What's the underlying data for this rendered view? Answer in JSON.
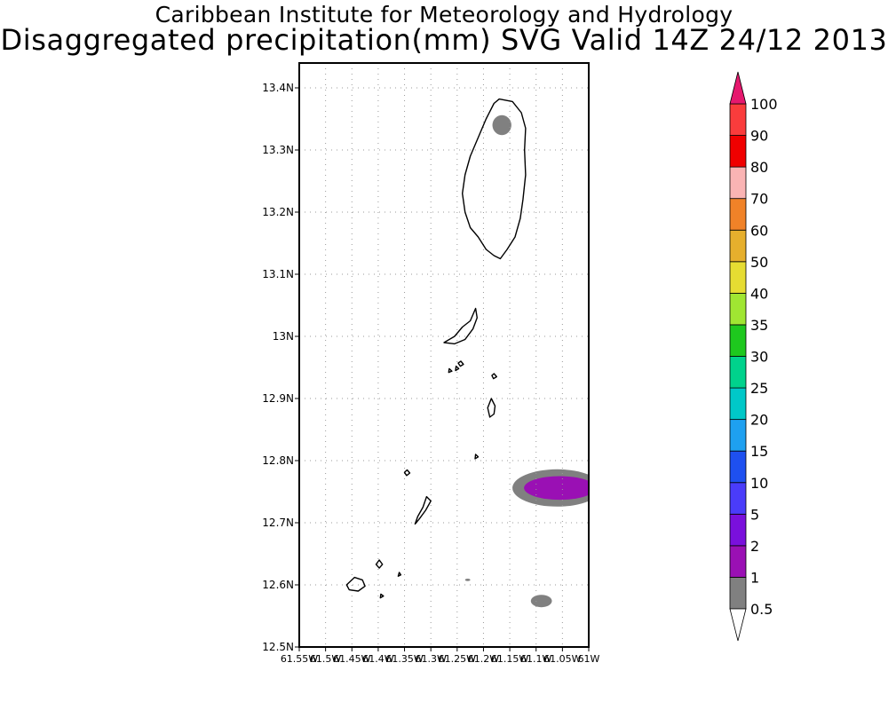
{
  "title_line1": "Caribbean Institute for Meteorology and Hydrology",
  "title_line2": "Disaggregated precipitation(mm) SVG Valid 14Z 24/12 2013",
  "y_ticks": [
    "13.4N",
    "13.3N",
    "13.2N",
    "13.1N",
    "13N",
    "12.9N",
    "12.8N",
    "12.7N",
    "12.6N",
    "12.5N"
  ],
  "x_ticks": [
    "61.55W",
    "61.5W",
    "61.45W",
    "61.4W",
    "61.35W",
    "61.3W",
    "61.25W",
    "61.2W",
    "61.15W",
    "61.1W",
    "61.05W",
    "61W"
  ],
  "extent": {
    "lon_min": -61.55,
    "lon_max": -61.0,
    "lat_min": 12.5,
    "lat_max": 13.44
  },
  "colorbar": {
    "labels": [
      "0.5",
      "1",
      "2",
      "5",
      "10",
      "15",
      "20",
      "25",
      "30",
      "35",
      "40",
      "50",
      "60",
      "70",
      "80",
      "90",
      "100"
    ],
    "colors": [
      "#808080",
      "#9a10b4",
      "#7a10dc",
      "#4a3cfa",
      "#1e50f0",
      "#1ea0f0",
      "#00c8c8",
      "#00d28c",
      "#1ec81e",
      "#a0e632",
      "#e6dc32",
      "#e6af2d",
      "#f08228",
      "#fab4b4",
      "#f00000",
      "#fa3c3c",
      "#e6186e"
    ],
    "colors_note": "first entry: lowest bin (0.5-1); last entry: upper arrow (>100)"
  },
  "precip_areas": [
    {
      "level": "0.5-1",
      "color": "#808080",
      "shape": "ellipse",
      "lon": -61.165,
      "lat": 13.34,
      "rlon": 0.018,
      "rlat": 0.016
    },
    {
      "level": "0.5-1",
      "color": "#808080",
      "shape": "ellipse",
      "lon": -61.06,
      "lat": 12.756,
      "rlon": 0.085,
      "rlat": 0.03
    },
    {
      "level": "1-2",
      "color": "#9a10b4",
      "shape": "ellipse",
      "lon": -61.055,
      "lat": 12.756,
      "rlon": 0.068,
      "rlat": 0.019
    },
    {
      "level": "0.5-1",
      "color": "#808080",
      "shape": "ellipse",
      "lon": -61.09,
      "lat": 12.574,
      "rlon": 0.02,
      "rlat": 0.01
    },
    {
      "level": "0.5-1",
      "color": "#808080",
      "shape": "ellipse",
      "lon": -61.23,
      "lat": 12.608,
      "rlon": 0.005,
      "rlat": 0.002
    }
  ],
  "land": [
    {
      "name": "St Vincent",
      "lonlat": [
        [
          -61.17,
          13.382
        ],
        [
          -61.145,
          13.378
        ],
        [
          -61.128,
          13.36
        ],
        [
          -61.12,
          13.335
        ],
        [
          -61.122,
          13.3
        ],
        [
          -61.12,
          13.26
        ],
        [
          -61.125,
          13.22
        ],
        [
          -61.13,
          13.19
        ],
        [
          -61.14,
          13.16
        ],
        [
          -61.155,
          13.14
        ],
        [
          -61.168,
          13.125
        ],
        [
          -61.18,
          13.13
        ],
        [
          -61.195,
          13.14
        ],
        [
          -61.21,
          13.16
        ],
        [
          -61.225,
          13.175
        ],
        [
          -61.235,
          13.2
        ],
        [
          -61.24,
          13.23
        ],
        [
          -61.235,
          13.26
        ],
        [
          -61.225,
          13.29
        ],
        [
          -61.21,
          13.32
        ],
        [
          -61.195,
          13.35
        ],
        [
          -61.18,
          13.375
        ]
      ]
    },
    {
      "name": "Bequia",
      "lonlat": [
        [
          -61.275,
          12.99
        ],
        [
          -61.255,
          13.0
        ],
        [
          -61.24,
          13.015
        ],
        [
          -61.225,
          13.025
        ],
        [
          -61.215,
          13.045
        ],
        [
          -61.212,
          13.03
        ],
        [
          -61.22,
          13.012
        ],
        [
          -61.235,
          12.995
        ],
        [
          -61.255,
          12.988
        ]
      ]
    },
    {
      "name": "Mustique",
      "lonlat": [
        [
          -61.185,
          12.9
        ],
        [
          -61.178,
          12.888
        ],
        [
          -61.18,
          12.875
        ],
        [
          -61.188,
          12.87
        ],
        [
          -61.192,
          12.885
        ]
      ]
    },
    {
      "name": "Canouan",
      "lonlat": [
        [
          -61.308,
          12.742
        ],
        [
          -61.3,
          12.735
        ],
        [
          -61.31,
          12.72
        ],
        [
          -61.322,
          12.706
        ],
        [
          -61.33,
          12.698
        ],
        [
          -61.325,
          12.71
        ],
        [
          -61.315,
          12.725
        ]
      ]
    },
    {
      "name": "Union",
      "lonlat": [
        [
          -61.445,
          12.612
        ],
        [
          -61.43,
          12.608
        ],
        [
          -61.425,
          12.598
        ],
        [
          -61.438,
          12.59
        ],
        [
          -61.455,
          12.592
        ],
        [
          -61.46,
          12.6
        ]
      ]
    },
    {
      "name": "Mayreau",
      "lonlat": [
        [
          -61.398,
          12.64
        ],
        [
          -61.392,
          12.633
        ],
        [
          -61.398,
          12.627
        ],
        [
          -61.404,
          12.633
        ]
      ]
    },
    {
      "name": "Baliceaux",
      "lonlat": [
        [
          -61.243,
          12.96
        ],
        [
          -61.238,
          12.955
        ],
        [
          -61.244,
          12.952
        ],
        [
          -61.248,
          12.957
        ]
      ]
    },
    {
      "name": "Battowia",
      "lonlat": [
        [
          -61.252,
          12.952
        ],
        [
          -61.247,
          12.948
        ],
        [
          -61.253,
          12.945
        ]
      ]
    },
    {
      "name": "Petit St Vincent",
      "lonlat": [
        [
          -61.345,
          12.785
        ],
        [
          -61.34,
          12.78
        ],
        [
          -61.346,
          12.776
        ],
        [
          -61.35,
          12.781
        ]
      ]
    },
    {
      "name": "Palm Island",
      "lonlat": [
        [
          -61.395,
          12.585
        ],
        [
          -61.39,
          12.582
        ],
        [
          -61.396,
          12.579
        ]
      ]
    },
    {
      "name": "Isle a Quatre",
      "lonlat": [
        [
          -61.265,
          12.948
        ],
        [
          -61.26,
          12.944
        ],
        [
          -61.266,
          12.942
        ]
      ]
    },
    {
      "name": "Petit Nevis",
      "lonlat": [
        [
          -61.215,
          12.81
        ],
        [
          -61.21,
          12.806
        ],
        [
          -61.216,
          12.803
        ]
      ]
    },
    {
      "name": "Savan",
      "lonlat": [
        [
          -61.18,
          12.94
        ],
        [
          -61.175,
          12.935
        ],
        [
          -61.181,
          12.932
        ],
        [
          -61.184,
          12.937
        ]
      ]
    },
    {
      "name": "All Awash",
      "lonlat": [
        [
          -61.36,
          12.62
        ],
        [
          -61.357,
          12.616
        ],
        [
          -61.362,
          12.614
        ]
      ]
    }
  ]
}
